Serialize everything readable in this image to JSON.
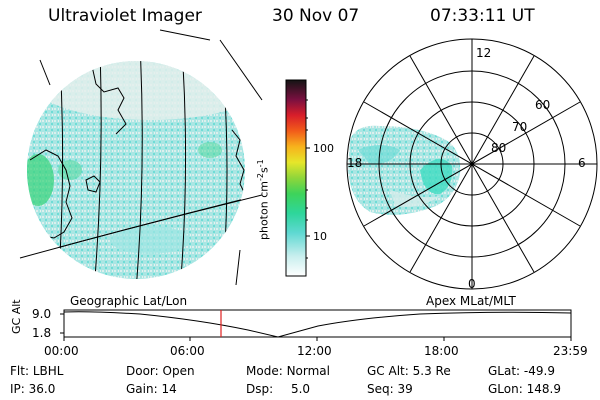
{
  "header": {
    "instrument": "Ultraviolet Imager",
    "date": "30 Nov 07",
    "time": "07:33:11 UT"
  },
  "colorbar": {
    "unit_prefix": "photon cm",
    "unit_exp1": "-2",
    "unit_mid": "s",
    "unit_exp2": "-1",
    "tick_high": "100",
    "tick_low": "10"
  },
  "polar_plot": {
    "mlt_labels": {
      "top": "12",
      "left": "18",
      "right": "6",
      "bottom": "0"
    },
    "lat_labels": [
      "60",
      "70",
      "80"
    ]
  },
  "panel_labels": {
    "left": "Geographic Lat/Lon",
    "right": "Apex MLat/MLT"
  },
  "altitude_plot": {
    "ylabel": "GC Alt",
    "ytick_high": "9.0",
    "ytick_low": "1.8",
    "xticks": [
      "00:00",
      "06:00",
      "12:00",
      "18:00",
      "23:59"
    ],
    "marker_time": "07:33"
  },
  "footer": {
    "row1": [
      {
        "label": "Flt:",
        "value": "LBHL"
      },
      {
        "label": "Door:",
        "value": "Open"
      },
      {
        "label": "Mode:",
        "value": "Normal"
      },
      {
        "label": "GC Alt:",
        "value": "5.3 Re"
      },
      {
        "label": "GLat:",
        "value": "-49.9"
      }
    ],
    "row2": [
      {
        "label": "IP:",
        "value": "36.0"
      },
      {
        "label": "Gain:",
        "value": "14"
      },
      {
        "label": "Dsp:",
        "value": "5.0"
      },
      {
        "label": "Seq:",
        "value": "39"
      },
      {
        "label": "GLon:",
        "value": "148.9"
      }
    ]
  },
  "colors": {
    "image_base": "#8ee3e0",
    "image_light": "#d9ebe8",
    "image_green": "#3fd47f",
    "marker": "#e02020"
  }
}
